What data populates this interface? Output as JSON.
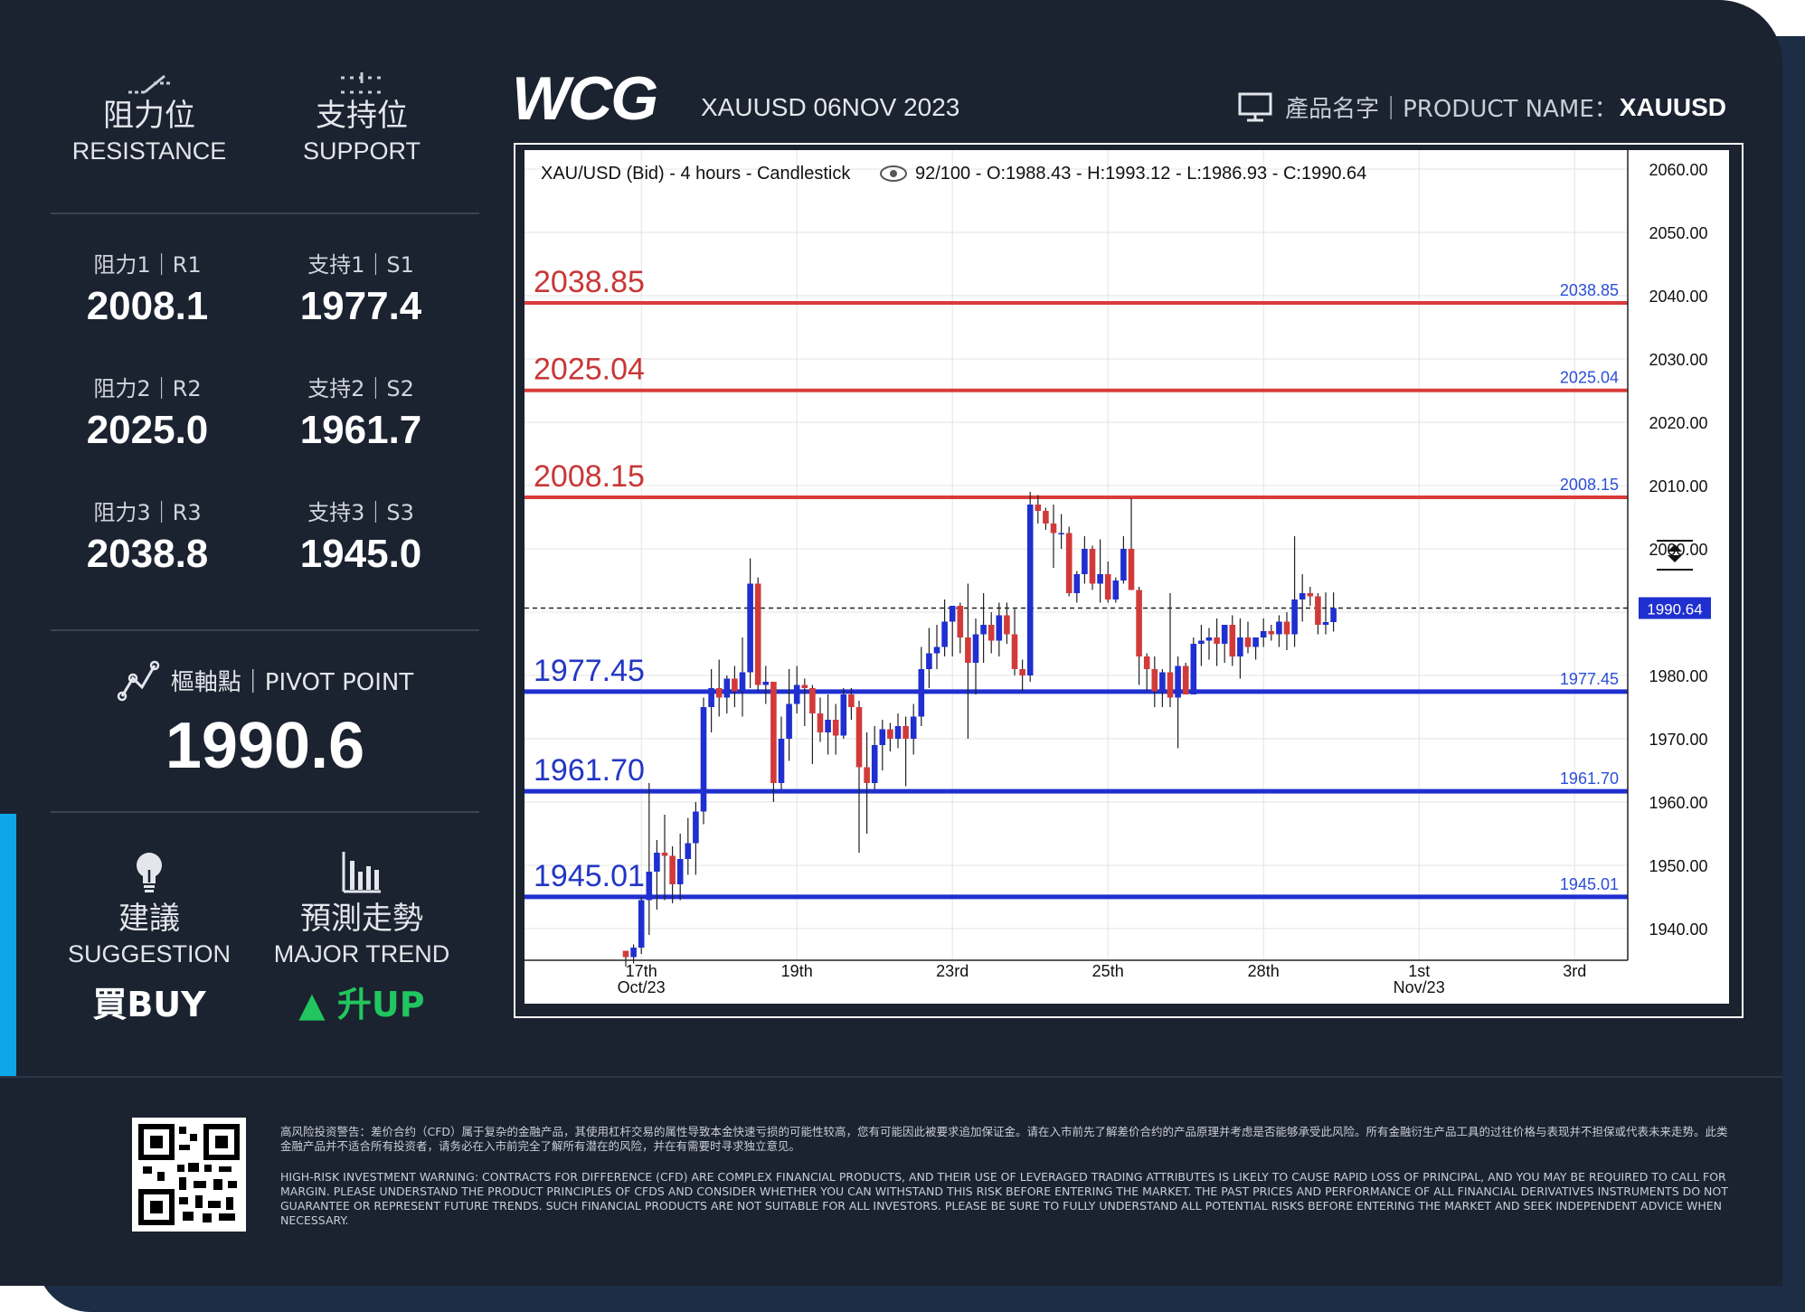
{
  "brand": {
    "logo_text": "WCG",
    "headline": "XAUUSD 06NOV 2023"
  },
  "product": {
    "label": "產品名字｜PRODUCT NAME：",
    "name": "XAUUSD"
  },
  "resistance_header": {
    "cn": "阻力位",
    "en": "RESISTANCE"
  },
  "support_header": {
    "cn": "支持位",
    "en": "SUPPORT"
  },
  "levels": {
    "r1": {
      "label": "阻力1｜R1",
      "value": "2008.1"
    },
    "r2": {
      "label": "阻力2｜R2",
      "value": "2025.0"
    },
    "r3": {
      "label": "阻力3｜R3",
      "value": "2038.8"
    },
    "s1": {
      "label": "支持1｜S1",
      "value": "1977.4"
    },
    "s2": {
      "label": "支持2｜S2",
      "value": "1961.7"
    },
    "s3": {
      "label": "支持3｜S3",
      "value": "1945.0"
    }
  },
  "pivot": {
    "label": "樞軸點｜PIVOT POINT",
    "value": "1990.6"
  },
  "suggestion": {
    "cn": "建議",
    "en": "SUGGESTION",
    "value": "買BUY"
  },
  "trend": {
    "cn": "預測走勢",
    "en": "MAJOR TREND",
    "value": "升UP",
    "arrow": "▲"
  },
  "colors": {
    "background": "#1b2230",
    "up_green": "#22c55e",
    "resistance_red": "#d93b3b",
    "support_blue": "#1f2fd0",
    "accent": "#0ea5e9"
  },
  "icons": [
    "resistance-icon",
    "support-icon",
    "pivot-icon",
    "lightbulb-icon",
    "bar-chart-icon",
    "monitor-icon",
    "eye-icon",
    "qr-code"
  ],
  "disclaimer": {
    "cn": "高风险投资警告：差价合约（CFD）属于复杂的金融产品，其使用杠杆交易的属性导致本金快速亏损的可能性较高，您有可能因此被要求追加保证金。请在入市前先了解差价合约的产品原理并考虑是否能够承受此风险。所有金融衍生产品工具的过往价格与表现并不担保或代表未来走势。此类金融产品并不适合所有投资者，请务必在入市前完全了解所有潜在的风险，并在有需要时寻求独立意见。",
    "en": "HIGH-RISK INVESTMENT WARNING: CONTRACTS FOR DIFFERENCE (CFD) ARE COMPLEX FINANCIAL PRODUCTS, AND THEIR USE OF LEVERAGED TRADING ATTRIBUTES IS LIKELY TO CAUSE RAPID LOSS OF PRINCIPAL, AND YOU MAY BE REQUIRED TO CALL FOR MARGIN. PLEASE UNDERSTAND THE PRODUCT PRINCIPLES OF CFDS AND CONSIDER WHETHER YOU CAN WITHSTAND THIS RISK BEFORE ENTERING THE MARKET. THE PAST PRICES AND PERFORMANCE OF ALL FINANCIAL DERIVATIVES INSTRUMENTS DO NOT GUARANTEE OR REPRESENT FUTURE TRENDS. SUCH FINANCIAL PRODUCTS ARE NOT SUITABLE FOR ALL INVESTORS. PLEASE BE SURE TO FULLY UNDERSTAND ALL POTENTIAL RISKS BEFORE ENTERING THE MARKET AND SEEK INDEPENDENT ADVICE WHEN NECESSARY."
  },
  "chart_data": {
    "type": "candlestick",
    "title_left": "XAU/USD (Bid) - 4 hours - Candlestick",
    "title_right": "92/100 - O:1988.43 - H:1993.12 - L:1986.93 - C:1990.64",
    "ylim": [
      1935,
      2063
    ],
    "y_ticks": [
      "2060.00",
      "2050.00",
      "2040.00",
      "2030.00",
      "2020.00",
      "2010.00",
      "2000.00",
      "1990.00",
      "1980.00",
      "1970.00",
      "1960.00",
      "1950.00",
      "1940.00"
    ],
    "y_tick_values": [
      2060,
      2050,
      2040,
      2030,
      2020,
      2010,
      2000,
      1990,
      1980,
      1970,
      1960,
      1950,
      1940
    ],
    "x_count": 92,
    "x_ticks": [
      {
        "i": 2,
        "label": "17th",
        "sub": "Oct/23"
      },
      {
        "i": 22,
        "label": "19th",
        "sub": ""
      },
      {
        "i": 42,
        "label": "23rd",
        "sub": ""
      },
      {
        "i": 62,
        "label": "25th",
        "sub": ""
      },
      {
        "i": 82,
        "label": "28th",
        "sub": ""
      },
      {
        "i": 102,
        "label": "1st",
        "sub": "Nov/23"
      },
      {
        "i": 122,
        "label": "3rd",
        "sub": ""
      }
    ],
    "last_price": "1990.64",
    "last_value": 1990.64,
    "horizontal_lines": [
      {
        "value": 2038.85,
        "label": "2038.85",
        "kind": "resistance"
      },
      {
        "value": 2025.04,
        "label": "2025.04",
        "kind": "resistance"
      },
      {
        "value": 2008.15,
        "label": "2008.15",
        "kind": "resistance"
      },
      {
        "value": 1977.45,
        "label": "1977.45",
        "kind": "support"
      },
      {
        "value": 1961.7,
        "label": "1961.70",
        "kind": "support"
      },
      {
        "value": 1945.01,
        "label": "1945.01",
        "kind": "support"
      }
    ],
    "candles": [
      [
        1936.5,
        1936.0,
        1934.0,
        1935.5
      ],
      [
        1935.5,
        1937.5,
        1934.5,
        1937.0
      ],
      [
        1937.0,
        1945.0,
        1936.0,
        1944.5
      ],
      [
        1944.5,
        1963.0,
        1939.0,
        1949.0
      ],
      [
        1949.0,
        1954.0,
        1943.0,
        1952.0
      ],
      [
        1952.0,
        1958.0,
        1944.5,
        1951.5
      ],
      [
        1951.5,
        1953.0,
        1944.0,
        1947.0
      ],
      [
        1947.0,
        1955.0,
        1944.5,
        1951.0
      ],
      [
        1951.0,
        1957.5,
        1948.5,
        1953.5
      ],
      [
        1953.5,
        1960.0,
        1948.5,
        1958.5
      ],
      [
        1958.5,
        1976.5,
        1956.5,
        1975.0
      ],
      [
        1975.0,
        1981.0,
        1971.0,
        1978.0
      ],
      [
        1978.0,
        1982.5,
        1973.5,
        1976.5
      ],
      [
        1976.5,
        1980.0,
        1974.0,
        1979.5
      ],
      [
        1979.5,
        1981.5,
        1975.0,
        1977.5
      ],
      [
        1977.5,
        1986.0,
        1973.5,
        1980.5
      ],
      [
        1980.5,
        1998.5,
        1978.0,
        1994.5
      ],
      [
        1994.5,
        1995.5,
        1977.5,
        1978.5
      ],
      [
        1978.5,
        1981.5,
        1975.5,
        1979.0
      ],
      [
        1979.0,
        1979.0,
        1960.0,
        1963.0
      ],
      [
        1963.0,
        1973.5,
        1962.0,
        1970.0
      ],
      [
        1970.0,
        1981.0,
        1966.5,
        1975.5
      ],
      [
        1975.5,
        1981.5,
        1974.0,
        1978.5
      ],
      [
        1978.5,
        1979.5,
        1972.0,
        1978.0
      ],
      [
        1978.0,
        1978.5,
        1966.0,
        1974.0
      ],
      [
        1974.0,
        1976.5,
        1969.5,
        1971.0
      ],
      [
        1971.0,
        1977.0,
        1967.5,
        1973.0
      ],
      [
        1973.0,
        1975.5,
        1967.5,
        1970.5
      ],
      [
        1970.5,
        1978.0,
        1970.0,
        1977.0
      ],
      [
        1977.0,
        1978.0,
        1973.0,
        1975.0
      ],
      [
        1975.0,
        1976.0,
        1952.0,
        1965.5
      ],
      [
        1965.5,
        1971.0,
        1955.0,
        1963.0
      ],
      [
        1963.0,
        1972.0,
        1962.0,
        1969.0
      ],
      [
        1969.0,
        1973.0,
        1965.0,
        1971.5
      ],
      [
        1971.5,
        1972.5,
        1968.0,
        1970.0
      ],
      [
        1970.0,
        1974.0,
        1968.5,
        1972.0
      ],
      [
        1972.0,
        1973.5,
        1962.5,
        1970.0
      ],
      [
        1970.0,
        1975.5,
        1967.5,
        1973.5
      ],
      [
        1973.5,
        1984.5,
        1972.0,
        1981.0
      ],
      [
        1981.0,
        1987.5,
        1978.0,
        1983.5
      ],
      [
        1983.5,
        1988.0,
        1981.0,
        1984.5
      ],
      [
        1984.5,
        1992.0,
        1983.0,
        1988.5
      ],
      [
        1988.5,
        1990.5,
        1983.0,
        1991.0
      ],
      [
        1991.0,
        1991.5,
        1983.5,
        1986.0
      ],
      [
        1986.0,
        1994.5,
        1970.0,
        1982.0
      ],
      [
        1982.0,
        1989.0,
        1977.0,
        1986.5
      ],
      [
        1986.5,
        1993.0,
        1982.0,
        1988.0
      ],
      [
        1988.0,
        1990.0,
        1983.5,
        1985.5
      ],
      [
        1985.5,
        1991.5,
        1983.0,
        1989.5
      ],
      [
        1989.5,
        1991.5,
        1985.0,
        1986.5
      ],
      [
        1986.5,
        1990.5,
        1980.0,
        1981.0
      ],
      [
        1981.0,
        1982.5,
        1977.5,
        1980.0
      ],
      [
        1980.0,
        2009.0,
        1979.0,
        2007.0
      ],
      [
        2007.0,
        2008.5,
        2004.0,
        2006.0
      ],
      [
        2006.0,
        2006.5,
        2003.0,
        2004.0
      ],
      [
        2004.0,
        2007.0,
        1997.0,
        2002.5
      ],
      [
        2002.5,
        2005.5,
        2000.0,
        2002.5
      ],
      [
        2002.5,
        2003.5,
        1992.5,
        1993.0
      ],
      [
        1993.0,
        1996.5,
        1991.5,
        1996.0
      ],
      [
        1996.0,
        2002.0,
        1994.5,
        2000.0
      ],
      [
        2000.0,
        2000.5,
        1993.5,
        1994.5
      ],
      [
        1994.5,
        2001.5,
        1991.5,
        1996.0
      ],
      [
        1996.0,
        1998.0,
        1991.5,
        1992.0
      ],
      [
        1992.0,
        1995.5,
        1991.5,
        1995.0
      ],
      [
        1995.0,
        2002.0,
        1994.5,
        2000.0
      ],
      [
        2000.0,
        2008.0,
        1993.5,
        1993.5
      ],
      [
        1993.5,
        1994.0,
        1978.5,
        1983.0
      ],
      [
        1983.0,
        1983.5,
        1977.5,
        1981.0
      ],
      [
        1981.0,
        1983.0,
        1975.0,
        1977.5
      ],
      [
        1977.5,
        1981.0,
        1975.0,
        1980.5
      ],
      [
        1980.5,
        1993.0,
        1975.0,
        1976.5
      ],
      [
        1976.5,
        1983.0,
        1968.5,
        1981.5
      ],
      [
        1981.5,
        1982.0,
        1977.0,
        1977.0
      ],
      [
        1977.0,
        1986.0,
        1977.0,
        1985.0
      ],
      [
        1985.0,
        1988.0,
        1981.5,
        1985.5
      ],
      [
        1985.5,
        1987.5,
        1982.5,
        1986.0
      ],
      [
        1986.0,
        1989.0,
        1981.5,
        1985.0
      ],
      [
        1985.0,
        1988.0,
        1982.0,
        1988.0
      ],
      [
        1988.0,
        1989.5,
        1981.5,
        1983.0
      ],
      [
        1983.0,
        1989.0,
        1979.5,
        1986.0
      ],
      [
        1986.0,
        1988.5,
        1983.5,
        1984.5
      ],
      [
        1984.5,
        1986.0,
        1982.5,
        1986.0
      ],
      [
        1986.0,
        1989.0,
        1984.5,
        1987.0
      ],
      [
        1987.0,
        1988.0,
        1985.5,
        1986.5
      ],
      [
        1986.5,
        1989.5,
        1984.5,
        1988.5
      ],
      [
        1988.5,
        1990.0,
        1984.0,
        1986.5
      ],
      [
        1986.5,
        2002.0,
        1984.5,
        1992.0
      ],
      [
        1992.0,
        1996.0,
        1988.5,
        1993.0
      ],
      [
        1993.0,
        1994.0,
        1991.0,
        1992.5
      ],
      [
        1992.5,
        1993.0,
        1986.5,
        1988.0
      ],
      [
        1988.0,
        1993.12,
        1986.5,
        1988.43
      ],
      [
        1988.43,
        1993.12,
        1986.93,
        1990.64
      ]
    ]
  }
}
